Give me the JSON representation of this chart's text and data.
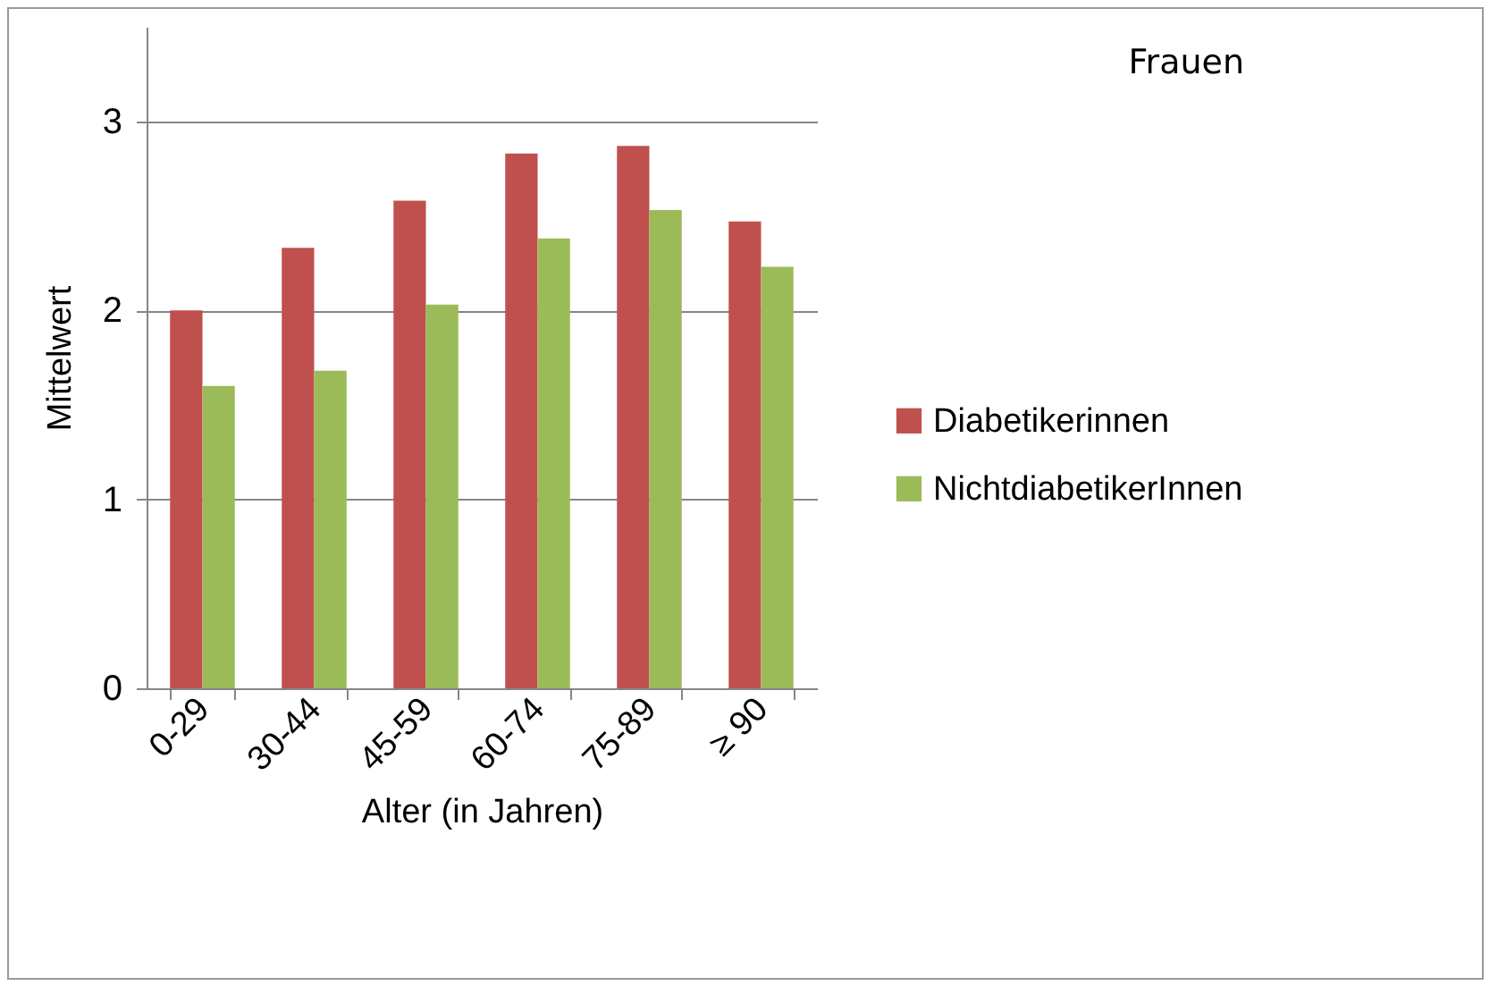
{
  "chart_data": {
    "type": "bar",
    "title": "Frauen",
    "xlabel": "Alter (in Jahren)",
    "ylabel": "Mittelwert",
    "categories": [
      "0-29",
      "30-44",
      "45-59",
      "60-74",
      "75-89",
      "≥ 90"
    ],
    "series": [
      {
        "name": "Diabetikerinnen",
        "color": "#c0504d",
        "values": [
          2.0,
          2.33,
          2.58,
          2.83,
          2.87,
          2.47
        ]
      },
      {
        "name": "NichtdiabetikerInnen",
        "color": "#9bbb59",
        "values": [
          1.6,
          1.68,
          2.03,
          2.38,
          2.53,
          2.23
        ]
      }
    ],
    "ylim": [
      0,
      3.5
    ],
    "yticks": [
      0,
      1,
      2,
      3
    ],
    "grid": "y",
    "legend": "right"
  }
}
